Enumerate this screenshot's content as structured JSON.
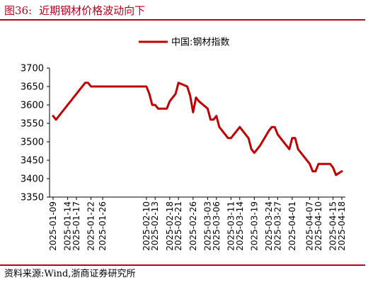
{
  "header": {
    "figure_number": "图36:",
    "title": "近期钢材价格波动向下"
  },
  "footer": {
    "source": "资料来源:Wind,浙商证券研究所"
  },
  "colors": {
    "accent": "#b8001e",
    "series": "#c00000"
  },
  "chart_data": {
    "type": "line",
    "title": "",
    "xlabel": "",
    "ylabel": "",
    "ylim": [
      3350,
      3700
    ],
    "yticks": [
      3350,
      3400,
      3450,
      3500,
      3550,
      3600,
      3650,
      3700
    ],
    "grid": false,
    "legend_position": "top-center",
    "x_tick_labels": [
      "2025-01-09",
      "2025-01-14",
      "2025-01-17",
      "2025-01-22",
      "2025-01-26",
      "2025-02-10",
      "2025-02-13",
      "2025-02-18",
      "2025-02-21",
      "2025-02-26",
      "2025-03-03",
      "2025-03-06",
      "2025-03-11",
      "2025-03-14",
      "2025-03-19",
      "2025-03-24",
      "2025-03-27",
      "2025-04-01",
      "2025-04-07",
      "2025-04-10",
      "2025-04-15",
      "2025-04-18"
    ],
    "x": [
      "2025-01-09",
      "2025-01-10",
      "2025-01-13",
      "2025-01-14",
      "2025-01-15",
      "2025-01-16",
      "2025-01-17",
      "2025-01-20",
      "2025-01-21",
      "2025-01-22",
      "2025-01-23",
      "2025-01-24",
      "2025-01-26",
      "2025-01-27",
      "2025-02-05",
      "2025-02-06",
      "2025-02-07",
      "2025-02-10",
      "2025-02-11",
      "2025-02-12",
      "2025-02-13",
      "2025-02-14",
      "2025-02-17",
      "2025-02-18",
      "2025-02-19",
      "2025-02-20",
      "2025-02-21",
      "2025-02-24",
      "2025-02-25",
      "2025-02-26",
      "2025-02-27",
      "2025-02-28",
      "2025-03-03",
      "2025-03-04",
      "2025-03-05",
      "2025-03-06",
      "2025-03-07",
      "2025-03-10",
      "2025-03-11",
      "2025-03-12",
      "2025-03-13",
      "2025-03-14",
      "2025-03-17",
      "2025-03-18",
      "2025-03-19",
      "2025-03-20",
      "2025-03-21",
      "2025-03-24",
      "2025-03-25",
      "2025-03-26",
      "2025-03-27",
      "2025-03-28",
      "2025-03-31",
      "2025-04-01",
      "2025-04-02",
      "2025-04-03",
      "2025-04-07",
      "2025-04-08",
      "2025-04-09",
      "2025-04-10",
      "2025-04-11",
      "2025-04-14",
      "2025-04-15",
      "2025-04-16",
      "2025-04-17",
      "2025-04-18"
    ],
    "series": [
      {
        "name": "中国:钢材指数",
        "values": [
          3570,
          3560,
          3590,
          3600,
          3610,
          3620,
          3630,
          3660,
          3660,
          3650,
          3650,
          3650,
          3650,
          3650,
          3650,
          3650,
          3650,
          3650,
          3630,
          3600,
          3600,
          3590,
          3590,
          3610,
          3620,
          3630,
          3660,
          3650,
          3625,
          3580,
          3620,
          3610,
          3590,
          3560,
          3560,
          3570,
          3540,
          3510,
          3510,
          3520,
          3530,
          3540,
          3510,
          3480,
          3470,
          3480,
          3490,
          3530,
          3540,
          3540,
          3520,
          3510,
          3480,
          3510,
          3510,
          3480,
          3440,
          3420,
          3420,
          3440,
          3440,
          3440,
          3430,
          3410,
          3415,
          3420
        ]
      }
    ]
  }
}
